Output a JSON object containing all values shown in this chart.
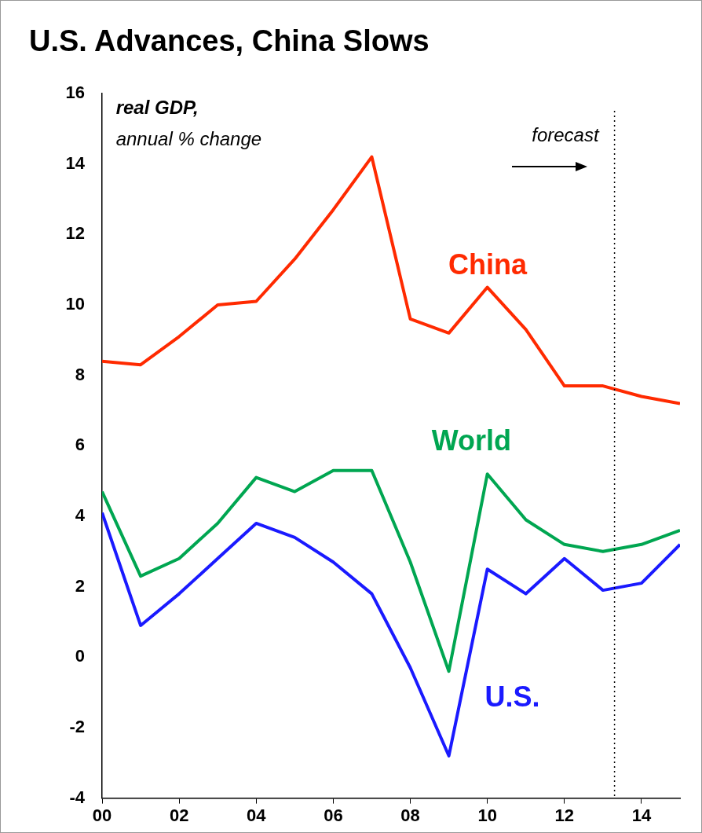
{
  "chart_data": {
    "type": "line",
    "title": "U.S. Advances, China Slows",
    "x": [
      0,
      1,
      2,
      3,
      4,
      5,
      6,
      7,
      8,
      9,
      10,
      11,
      12,
      13,
      14,
      15
    ],
    "xlim": [
      0,
      15
    ],
    "xticks": [
      {
        "value": 0,
        "label": "00"
      },
      {
        "value": 2,
        "label": "02"
      },
      {
        "value": 4,
        "label": "04"
      },
      {
        "value": 6,
        "label": "06"
      },
      {
        "value": 8,
        "label": "08"
      },
      {
        "value": 10,
        "label": "10"
      },
      {
        "value": 12,
        "label": "12"
      },
      {
        "value": 14,
        "label": "14"
      }
    ],
    "ylim": [
      -4,
      16
    ],
    "yticks": [
      -4,
      -2,
      0,
      2,
      4,
      6,
      8,
      10,
      12,
      14,
      16
    ],
    "series": [
      {
        "name": "China",
        "color": "#ff2a00",
        "values": [
          8.4,
          8.3,
          9.1,
          10.0,
          10.1,
          11.3,
          12.7,
          14.2,
          9.6,
          9.2,
          10.5,
          9.3,
          7.7,
          7.7,
          7.4,
          7.2
        ]
      },
      {
        "name": "World",
        "color": "#00a651",
        "values": [
          4.7,
          2.3,
          2.8,
          3.8,
          5.1,
          4.7,
          5.3,
          5.3,
          2.7,
          -0.4,
          5.2,
          3.9,
          3.2,
          3.0,
          3.2,
          3.6
        ]
      },
      {
        "name": "U.S.",
        "color": "#1a1aff",
        "values": [
          4.1,
          0.9,
          1.8,
          2.8,
          3.8,
          3.4,
          2.7,
          1.8,
          -0.3,
          -2.8,
          2.5,
          1.8,
          2.8,
          1.9,
          2.1,
          3.2
        ]
      }
    ],
    "ref_lines": [
      {
        "axis": "x",
        "value": 13.3,
        "label": "forecast",
        "line_style": "dotted",
        "color": "#000000"
      }
    ],
    "annotations": [
      "real GDP,",
      "annual % change"
    ],
    "grid": false,
    "legend": false,
    "marker": "none",
    "line_style": "solid"
  }
}
